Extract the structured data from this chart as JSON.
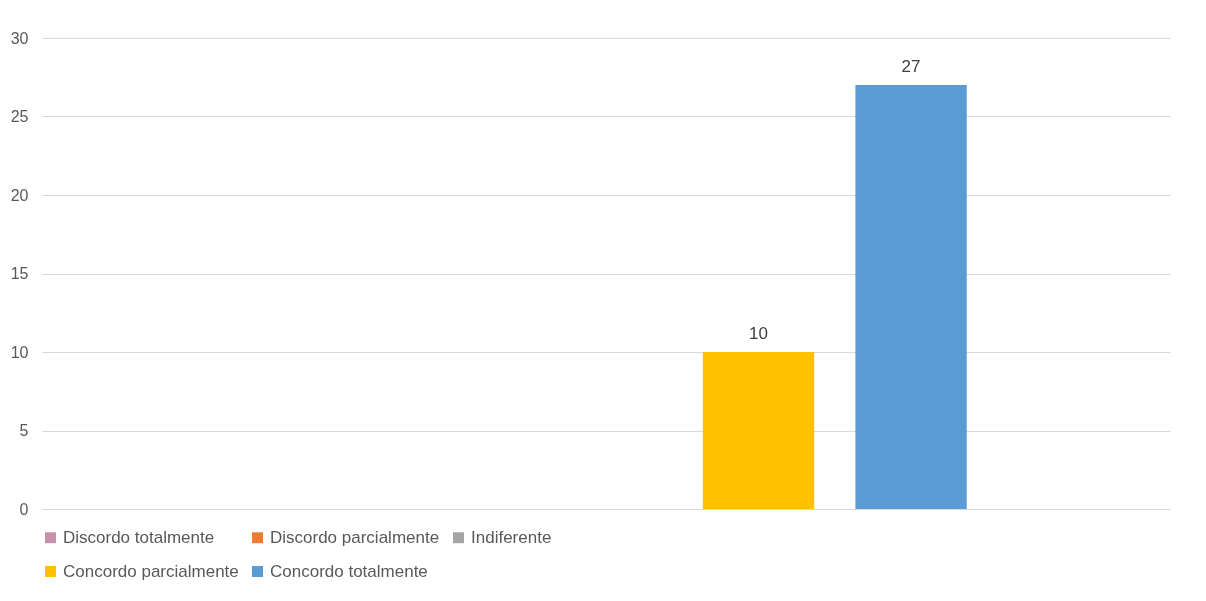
{
  "chart_data": {
    "type": "bar",
    "categories": [
      null
    ],
    "series": [
      {
        "name": "Discordo totalmente",
        "color": "#c990ac",
        "values": [
          0
        ],
        "value_labels": [
          null
        ]
      },
      {
        "name": "Discordo parcialmente",
        "color": "#ed7d31",
        "values": [
          0
        ],
        "value_labels": [
          null
        ]
      },
      {
        "name": "Indiferente",
        "color": "#a5a5a5",
        "values": [
          0
        ],
        "value_labels": [
          null
        ]
      },
      {
        "name": "Concordo parcialmente",
        "color": "#ffc000",
        "values": [
          10
        ],
        "value_labels": [
          "10"
        ]
      },
      {
        "name": "Concordo totalmente",
        "color": "#5b9bd5",
        "values": [
          27
        ],
        "value_labels": [
          "27"
        ]
      }
    ],
    "ylim": [
      0,
      30
    ],
    "yticks": [
      0,
      5,
      10,
      15,
      20,
      25,
      30
    ],
    "grid": "y",
    "legend": "bottom"
  }
}
